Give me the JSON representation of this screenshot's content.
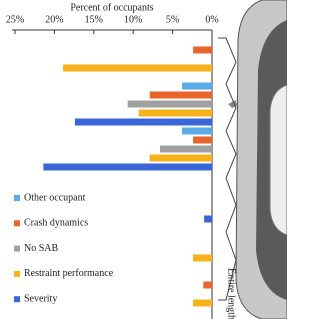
{
  "chart_data": {
    "type": "hbar",
    "x_label": "Percent of occupants",
    "xlim": [
      0,
      25
    ],
    "x_reversed": true,
    "xticks": [
      {
        "value": 25,
        "label": "25%"
      },
      {
        "value": 20,
        "label": "20%"
      },
      {
        "value": 15,
        "label": "15%"
      },
      {
        "value": 10,
        "label": "10%"
      },
      {
        "value": 5,
        "label": "5%"
      },
      {
        "value": 0,
        "label": "0%"
      }
    ],
    "categories": [
      null,
      null,
      null,
      null,
      null,
      "Entire length"
    ],
    "series": [
      {
        "name": "Other occupant",
        "color": "#5aabe8",
        "values": [
          null,
          3.8,
          3.8,
          null,
          null,
          null
        ]
      },
      {
        "name": "Crash dynamics",
        "color": "#e8642a",
        "values": [
          2.4,
          7.9,
          2.4,
          null,
          null,
          1.1
        ]
      },
      {
        "name": "No SAB",
        "color": "#a0a0a0",
        "values": [
          null,
          10.7,
          6.6,
          null,
          null,
          null
        ]
      },
      {
        "name": "Restraint performance",
        "color": "#f5b21b",
        "values": [
          18.9,
          9.3,
          7.9,
          null,
          2.4,
          2.4
        ]
      },
      {
        "name": "Severity",
        "color": "#3a66d8",
        "values": [
          null,
          17.4,
          21.4,
          1.0,
          null,
          null
        ]
      }
    ]
  }
}
